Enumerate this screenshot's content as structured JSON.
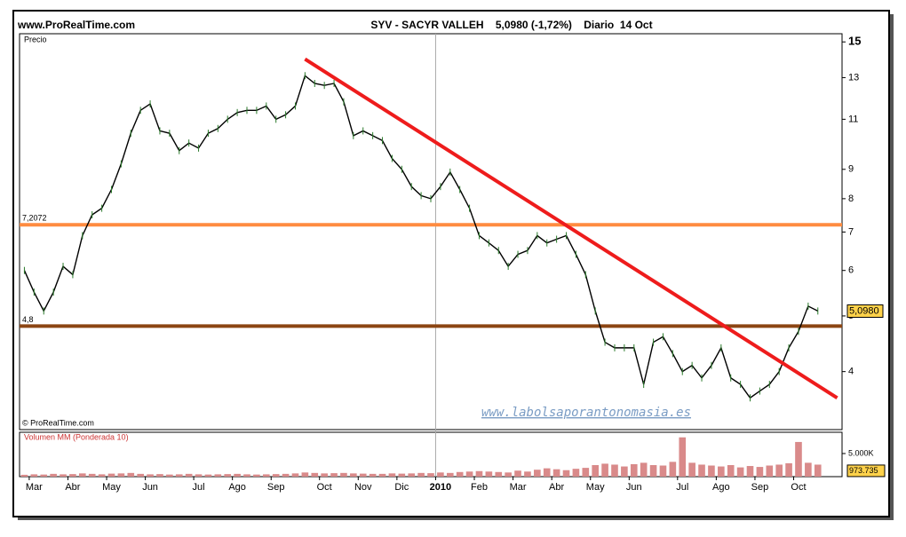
{
  "chart_data": {
    "type": "line",
    "site": "www.ProRealTime.com",
    "title": "SYV - SACYR VALLEH    5,0980 (-1,72%)    Diario  14 Oct",
    "panel_label": "Precio",
    "copyright": "© ProRealTime.com",
    "watermark": "www.labolsaporantonomasia.es",
    "categories": [
      null,
      "Mar",
      null,
      null,
      null,
      "Abr",
      null,
      null,
      null,
      "May",
      null,
      null,
      null,
      "Jun",
      null,
      null,
      null,
      null,
      "Jul",
      null,
      null,
      null,
      "Ago",
      null,
      null,
      null,
      "Sep",
      null,
      null,
      null,
      null,
      "Oct",
      null,
      null,
      null,
      "Nov",
      null,
      null,
      null,
      "Dic",
      null,
      null,
      null,
      "2010",
      null,
      null,
      null,
      "Feb",
      null,
      null,
      null,
      "Mar",
      null,
      null,
      null,
      "Abr",
      null,
      null,
      null,
      "May",
      null,
      null,
      null,
      "Jun",
      null,
      null,
      null,
      null,
      "Jul",
      null,
      null,
      null,
      "Ago",
      null,
      null,
      null,
      "Sep",
      null,
      null,
      null,
      "Oct",
      null,
      null,
      null,
      null
    ],
    "series": [
      {
        "name": "Precio",
        "color": "#000000",
        "values": [
          6.0,
          5.5,
          5.1,
          5.5,
          6.1,
          5.9,
          6.9,
          7.5,
          7.7,
          8.3,
          9.2,
          10.4,
          11.4,
          11.7,
          10.5,
          10.4,
          9.7,
          10.0,
          9.8,
          10.4,
          10.6,
          11.0,
          11.3,
          11.4,
          11.4,
          11.6,
          11.0,
          11.2,
          11.6,
          13.1,
          12.7,
          12.6,
          12.7,
          11.8,
          10.3,
          10.5,
          10.3,
          10.1,
          9.4,
          9.0,
          8.4,
          8.1,
          8.0,
          8.4,
          8.9,
          8.3,
          7.7,
          6.9,
          6.7,
          6.5,
          6.1,
          6.4,
          6.5,
          6.9,
          6.7,
          6.8,
          6.9,
          6.4,
          5.9,
          5.1,
          4.5,
          4.4,
          4.4,
          4.4,
          3.8,
          4.5,
          4.6,
          4.3,
          4.0,
          4.1,
          3.9,
          4.1,
          4.4,
          3.9,
          3.8,
          3.6,
          3.7,
          3.8,
          4.0,
          4.4,
          4.7,
          5.2,
          5.1,
          null,
          null
        ]
      }
    ],
    "log_scale": true,
    "ylim": [
      3.17,
      15.5
    ],
    "yticks": [
      4,
      5,
      6,
      7,
      8,
      9,
      11,
      13,
      15
    ],
    "last_value": {
      "value": 5.098,
      "label": "5,0980"
    },
    "levels": [
      {
        "value": 7.2072,
        "label": "7,2072",
        "color": "#ff8c40"
      },
      {
        "value": 4.8,
        "label": "4,8",
        "color": "#8b4513"
      }
    ],
    "trend_line": {
      "x": [
        29,
        84
      ],
      "values": [
        14.0,
        3.6
      ],
      "color": "#ee1c1c"
    },
    "volume": {
      "name": "Volumen MM (Ponderada 10)",
      "color": "#d98a8a",
      "values": [
        400,
        500,
        450,
        600,
        500,
        550,
        700,
        600,
        500,
        650,
        700,
        800,
        600,
        500,
        550,
        450,
        500,
        600,
        500,
        450,
        500,
        550,
        600,
        500,
        450,
        500,
        550,
        600,
        700,
        900,
        800,
        700,
        750,
        800,
        700,
        650,
        600,
        600,
        700,
        650,
        700,
        800,
        750,
        900,
        800,
        1000,
        1100,
        1200,
        1100,
        1000,
        900,
        1300,
        1100,
        1500,
        1800,
        1600,
        1400,
        1700,
        1900,
        2500,
        2800,
        2600,
        2200,
        2700,
        3000,
        2500,
        2400,
        3200,
        8500,
        3000,
        2600,
        2400,
        2200,
        2500,
        2000,
        2300,
        2100,
        2400,
        2600,
        2900,
        7500,
        3000,
        2600,
        null,
        null
      ],
      "ylim": [
        0,
        9600
      ],
      "yticks": [
        {
          "value": 5000,
          "label": "5.000K"
        }
      ],
      "last_value": {
        "value": 973.735,
        "label": "973.735"
      }
    }
  }
}
